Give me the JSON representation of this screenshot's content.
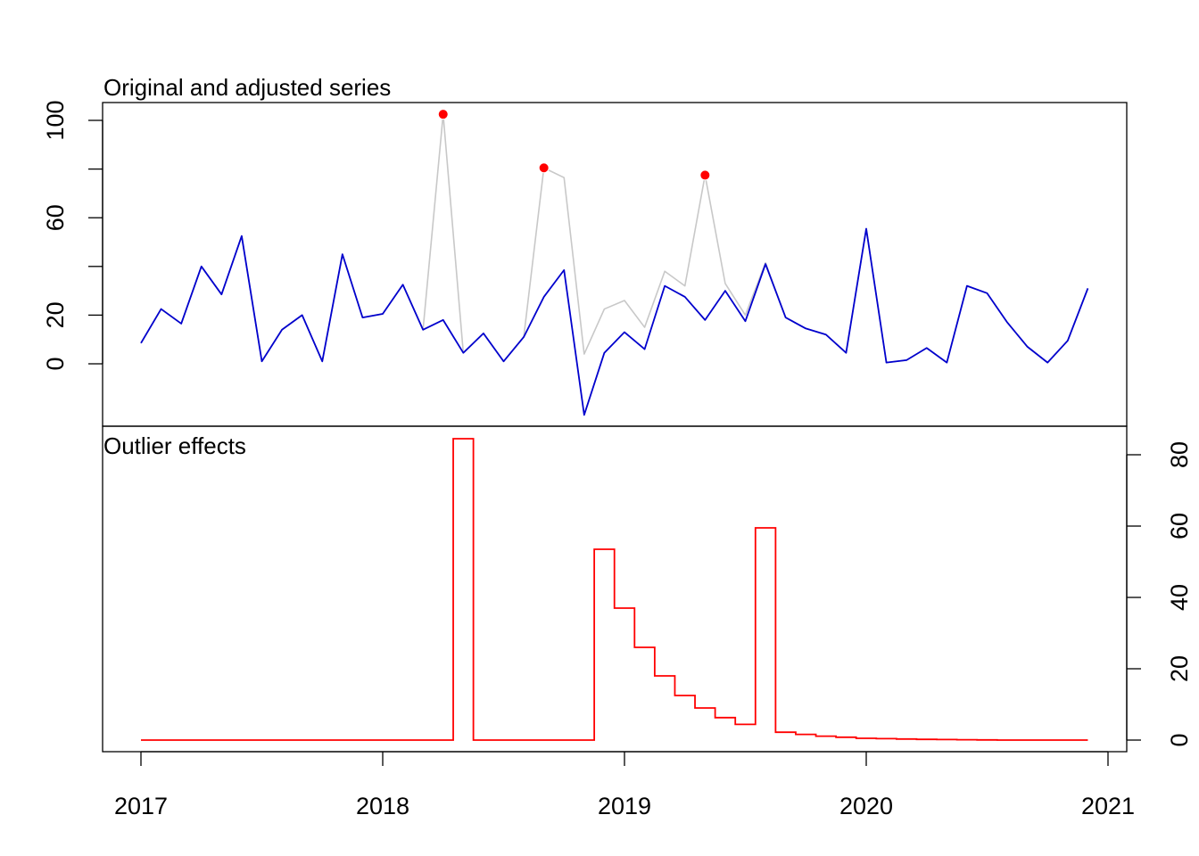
{
  "chart_data": [
    {
      "type": "line",
      "title": "Original and adjusted series",
      "x_start": 2017.0,
      "x_step": 0.08333333,
      "xlim": [
        2017,
        2021
      ],
      "ylim": [
        -20,
        100
      ],
      "y_ticks": [
        0,
        20,
        60,
        100
      ],
      "series": [
        {
          "color": "#C8C8C8",
          "values": [
            8.5,
            22.5,
            16.5,
            40,
            28.5,
            52.5,
            1,
            14,
            20,
            1,
            45,
            19,
            20.5,
            32.5,
            14,
            18,
            4.5,
            12.5,
            1,
            11,
            27.5,
            38.5,
            4,
            22.5,
            26,
            15,
            38,
            32,
            76,
            33,
            18.5,
            41.5,
            19,
            14.5,
            12,
            4.5,
            55.5,
            0.5,
            1.5,
            6.5,
            0.5,
            32,
            29,
            17,
            7,
            0.5,
            9.5,
            31
          ],
          "override": [
            [
              15,
              102.5
            ],
            [
              20,
              80.5
            ],
            [
              21,
              76.5
            ],
            [
              28,
              77.5
            ],
            [
              30,
              20
            ]
          ]
        },
        {
          "color": "#0000CD",
          "values": [
            8.5,
            22.5,
            16.5,
            40,
            28.5,
            52.5,
            1,
            14,
            20,
            1,
            45,
            19,
            20.5,
            32.5,
            14,
            18,
            4.5,
            12.5,
            1,
            11,
            27.5,
            38.5,
            -21,
            4.5,
            13,
            6,
            32,
            27.5,
            18,
            30,
            17.5,
            41,
            19,
            14.5,
            12,
            4.5,
            55.5,
            0.5,
            1.5,
            6.5,
            0.5,
            32,
            29,
            17,
            7,
            0.5,
            9.5,
            31
          ]
        }
      ],
      "outlier_points": [
        {
          "index": 15,
          "value": 102.5
        },
        {
          "index": 20,
          "value": 80.5
        },
        {
          "index": 28,
          "value": 77.5
        }
      ]
    },
    {
      "type": "step",
      "title": "Outlier effects",
      "ylim": [
        -3,
        85
      ],
      "y_ticks": [
        0,
        20,
        40,
        60,
        80
      ],
      "color": "#FF0000",
      "values": [
        0,
        0,
        0,
        0,
        0,
        0,
        0,
        0,
        0,
        0,
        0,
        0,
        0,
        0,
        0,
        0,
        84.5,
        0,
        0,
        0,
        0,
        0,
        0,
        53.5,
        37,
        26,
        18,
        12.5,
        9,
        6.3,
        4.4,
        59.5,
        2.2,
        1.6,
        1.1,
        0.8,
        0.5,
        0.4,
        0.3,
        0.2,
        0.15,
        0.1,
        0.05,
        0,
        0,
        0,
        0,
        0
      ],
      "x_step_start": 2016.958
    }
  ],
  "x_axis": {
    "ticks": [
      2017,
      2018,
      2019,
      2020,
      2021
    ],
    "labels": [
      "2017",
      "2018",
      "2019",
      "2020",
      "2021"
    ]
  }
}
